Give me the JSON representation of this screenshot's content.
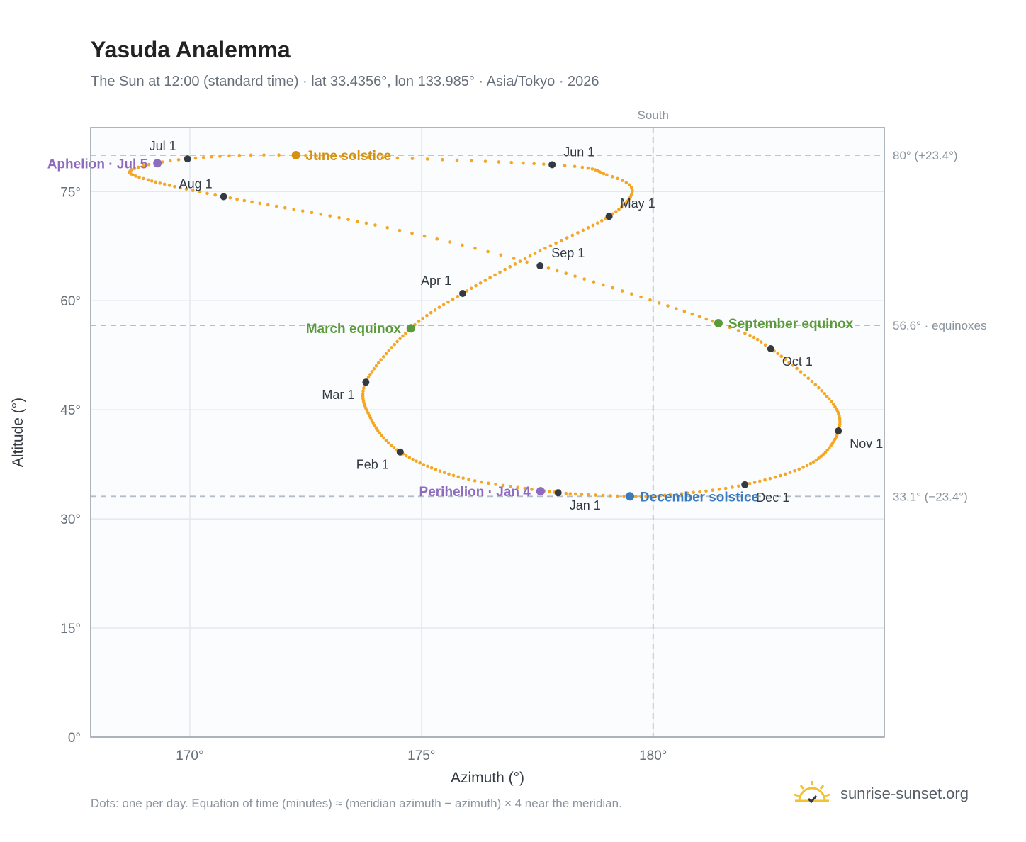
{
  "header": {
    "title": "Yasuda Analemma",
    "subtitle": "The Sun at 12:00 (standard time) · lat 33.4356°, lon 133.985° · Asia/Tokyo · 2026"
  },
  "footer": {
    "note": "Dots: one per day. Equation of time (minutes) ≈ (meridian azimuth − azimuth) × 4 near the meridian.",
    "brand": "sunrise-sunset.org"
  },
  "chart_data": {
    "type": "scatter",
    "xlabel": "Azimuth (°)",
    "ylabel": "Altitude (°)",
    "xlim": [
      167.86,
      184.99
    ],
    "ylim": [
      0,
      83.8
    ],
    "x_ticks": [
      {
        "value": 170,
        "label": "170°"
      },
      {
        "value": 175,
        "label": "175°"
      },
      {
        "value": 180,
        "label": "180°"
      }
    ],
    "y_ticks": [
      {
        "value": 0,
        "label": "0°"
      },
      {
        "value": 15,
        "label": "15°"
      },
      {
        "value": 30,
        "label": "30°"
      },
      {
        "value": 45,
        "label": "45°"
      },
      {
        "value": 60,
        "label": "60°"
      },
      {
        "value": 75,
        "label": "75°"
      }
    ],
    "grid": true,
    "reference_lines": [
      {
        "axis": "x",
        "value": 180,
        "label": "South"
      },
      {
        "axis": "y",
        "value": 80.0,
        "label": "80° (+23.4°)"
      },
      {
        "axis": "y",
        "value": 56.6,
        "label": "56.6° · equinoxes"
      },
      {
        "axis": "y",
        "value": 33.1,
        "label": "33.1° (−23.4°)"
      }
    ],
    "series": [
      {
        "type": "daily",
        "color": "#f5a623",
        "anchors": [
          {
            "day": 0,
            "az": 177.95,
            "alt": 33.6
          },
          {
            "day": 15,
            "az": 175.9,
            "alt": 35.6
          },
          {
            "day": 31,
            "az": 174.54,
            "alt": 39.2
          },
          {
            "day": 45,
            "az": 173.9,
            "alt": 43.9
          },
          {
            "day": 59,
            "az": 173.8,
            "alt": 48.8
          },
          {
            "day": 78,
            "az": 174.77,
            "alt": 56.2
          },
          {
            "day": 90,
            "az": 175.89,
            "alt": 61.0
          },
          {
            "day": 105,
            "az": 177.45,
            "alt": 66.5
          },
          {
            "day": 120,
            "az": 179.05,
            "alt": 71.6
          },
          {
            "day": 133,
            "az": 179.55,
            "alt": 75.2
          },
          {
            "day": 140,
            "az": 179.0,
            "alt": 77.3
          },
          {
            "day": 151,
            "az": 177.82,
            "alt": 78.7
          },
          {
            "day": 171,
            "az": 172.29,
            "alt": 80.0
          },
          {
            "day": 181,
            "az": 169.95,
            "alt": 79.5
          },
          {
            "day": 190,
            "az": 168.75,
            "alt": 78.0
          },
          {
            "day": 199,
            "az": 169.1,
            "alt": 76.6
          },
          {
            "day": 212,
            "az": 170.73,
            "alt": 74.3
          },
          {
            "day": 230,
            "az": 174.0,
            "alt": 70.4
          },
          {
            "day": 243,
            "az": 177.56,
            "alt": 64.8
          },
          {
            "day": 264,
            "az": 181.41,
            "alt": 56.9
          },
          {
            "day": 273,
            "az": 182.54,
            "alt": 53.4
          },
          {
            "day": 290,
            "az": 183.8,
            "alt": 46.5
          },
          {
            "day": 304,
            "az": 184.0,
            "alt": 42.1
          },
          {
            "day": 320,
            "az": 183.4,
            "alt": 37.6
          },
          {
            "day": 334,
            "az": 181.98,
            "alt": 34.7
          },
          {
            "day": 345,
            "az": 180.5,
            "alt": 33.4
          },
          {
            "day": 354,
            "az": 179.5,
            "alt": 33.1
          },
          {
            "day": 364,
            "az": 178.12,
            "alt": 33.5
          }
        ]
      }
    ],
    "months": [
      {
        "label": "Jan 1",
        "az": 177.95,
        "alt": 33.6,
        "pos": "below-right"
      },
      {
        "label": "Feb 1",
        "az": 174.54,
        "alt": 39.2,
        "pos": "below-left"
      },
      {
        "label": "Mar 1",
        "az": 173.8,
        "alt": 48.8,
        "pos": "below-left"
      },
      {
        "label": "Apr 1",
        "az": 175.89,
        "alt": 61.0,
        "pos": "above-left"
      },
      {
        "label": "May 1",
        "az": 179.05,
        "alt": 71.6,
        "pos": "above-right"
      },
      {
        "label": "Jun 1",
        "az": 177.82,
        "alt": 78.7,
        "pos": "above-right"
      },
      {
        "label": "Jul 1",
        "az": 169.95,
        "alt": 79.5,
        "pos": "above-left"
      },
      {
        "label": "Aug 1",
        "az": 170.73,
        "alt": 74.3,
        "pos": "above-left"
      },
      {
        "label": "Sep 1",
        "az": 177.56,
        "alt": 64.8,
        "pos": "above-right"
      },
      {
        "label": "Oct 1",
        "az": 182.54,
        "alt": 53.4,
        "pos": "below-right"
      },
      {
        "label": "Nov 1",
        "az": 184.0,
        "alt": 42.1,
        "pos": "below-right"
      },
      {
        "label": "Dec 1",
        "az": 181.98,
        "alt": 34.7,
        "pos": "below-right"
      }
    ],
    "events": [
      {
        "label": "June solstice",
        "az": 172.29,
        "alt": 80.0,
        "color": "#d4900f",
        "pos": "right"
      },
      {
        "label": "March equinox",
        "az": 174.77,
        "alt": 56.2,
        "color": "#5a9a3a",
        "pos": "left"
      },
      {
        "label": "September equinox",
        "az": 181.41,
        "alt": 56.9,
        "color": "#5a9a3a",
        "pos": "right"
      },
      {
        "label": "December solstice",
        "az": 179.5,
        "alt": 33.1,
        "color": "#3a7bbf",
        "pos": "right"
      },
      {
        "label": "Aphelion · Jul 5",
        "az": 169.3,
        "alt": 78.9,
        "color": "#8e6bbf",
        "pos": "left"
      },
      {
        "label": "Perihelion · Jan 4",
        "az": 177.57,
        "alt": 33.8,
        "color": "#8e6bbf",
        "pos": "left"
      }
    ]
  }
}
